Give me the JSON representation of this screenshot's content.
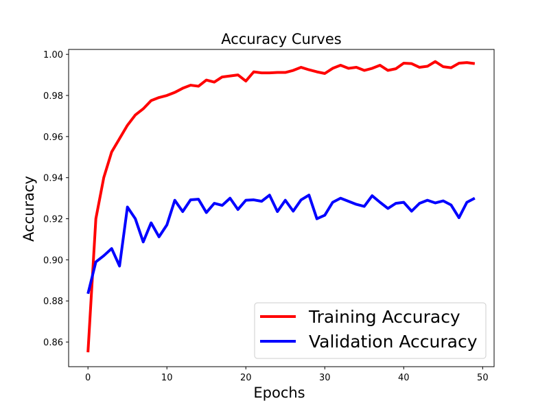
{
  "chart_data": {
    "type": "line",
    "title": "Accuracy Curves",
    "xlabel": "Epochs",
    "ylabel": "Accuracy",
    "xlim": [
      -2.45,
      51.45
    ],
    "ylim": [
      0.848,
      1.0024
    ],
    "xticks": [
      0,
      10,
      20,
      30,
      40,
      50
    ],
    "xtick_labels": [
      "0",
      "10",
      "20",
      "30",
      "40",
      "50"
    ],
    "yticks": [
      0.86,
      0.88,
      0.9,
      0.92,
      0.94,
      0.96,
      0.98,
      1.0
    ],
    "ytick_labels": [
      "0.86",
      "0.88",
      "0.90",
      "0.92",
      "0.94",
      "0.96",
      "0.98",
      "1.00"
    ],
    "grid": false,
    "legend_position": "lower-right",
    "x": [
      0,
      1,
      2,
      3,
      4,
      5,
      6,
      7,
      8,
      9,
      10,
      11,
      12,
      13,
      14,
      15,
      16,
      17,
      18,
      19,
      20,
      21,
      22,
      23,
      24,
      25,
      26,
      27,
      28,
      29,
      30,
      31,
      32,
      33,
      34,
      35,
      36,
      37,
      38,
      39,
      40,
      41,
      42,
      43,
      44,
      45,
      46,
      47,
      48,
      49
    ],
    "series": [
      {
        "name": "Training Accuracy",
        "color": "#ff0000",
        "values": [
          0.855,
          0.92,
          0.94,
          0.9525,
          0.959,
          0.9655,
          0.9705,
          0.9735,
          0.9775,
          0.979,
          0.98,
          0.9815,
          0.9835,
          0.985,
          0.9845,
          0.9875,
          0.9865,
          0.989,
          0.9895,
          0.99,
          0.987,
          0.9915,
          0.991,
          0.991,
          0.9912,
          0.9912,
          0.9922,
          0.9937,
          0.9925,
          0.9915,
          0.9907,
          0.9932,
          0.9947,
          0.9932,
          0.9937,
          0.9922,
          0.9932,
          0.9947,
          0.9922,
          0.993,
          0.9957,
          0.9955,
          0.9937,
          0.9942,
          0.9965,
          0.994,
          0.9935,
          0.9957,
          0.996,
          0.9955
        ]
      },
      {
        "name": "Validation Accuracy",
        "color": "#0000ff",
        "values": [
          0.8835,
          0.899,
          0.902,
          0.9055,
          0.897,
          0.9257,
          0.92,
          0.9087,
          0.918,
          0.9112,
          0.917,
          0.929,
          0.9235,
          0.9292,
          0.9295,
          0.923,
          0.9275,
          0.9265,
          0.93,
          0.9245,
          0.929,
          0.9292,
          0.9285,
          0.9315,
          0.9235,
          0.929,
          0.9237,
          0.9292,
          0.9315,
          0.92,
          0.9217,
          0.928,
          0.93,
          0.9285,
          0.927,
          0.926,
          0.9312,
          0.928,
          0.925,
          0.9275,
          0.928,
          0.9237,
          0.9275,
          0.929,
          0.9277,
          0.9287,
          0.9267,
          0.9205,
          0.928,
          0.93
        ]
      }
    ]
  }
}
